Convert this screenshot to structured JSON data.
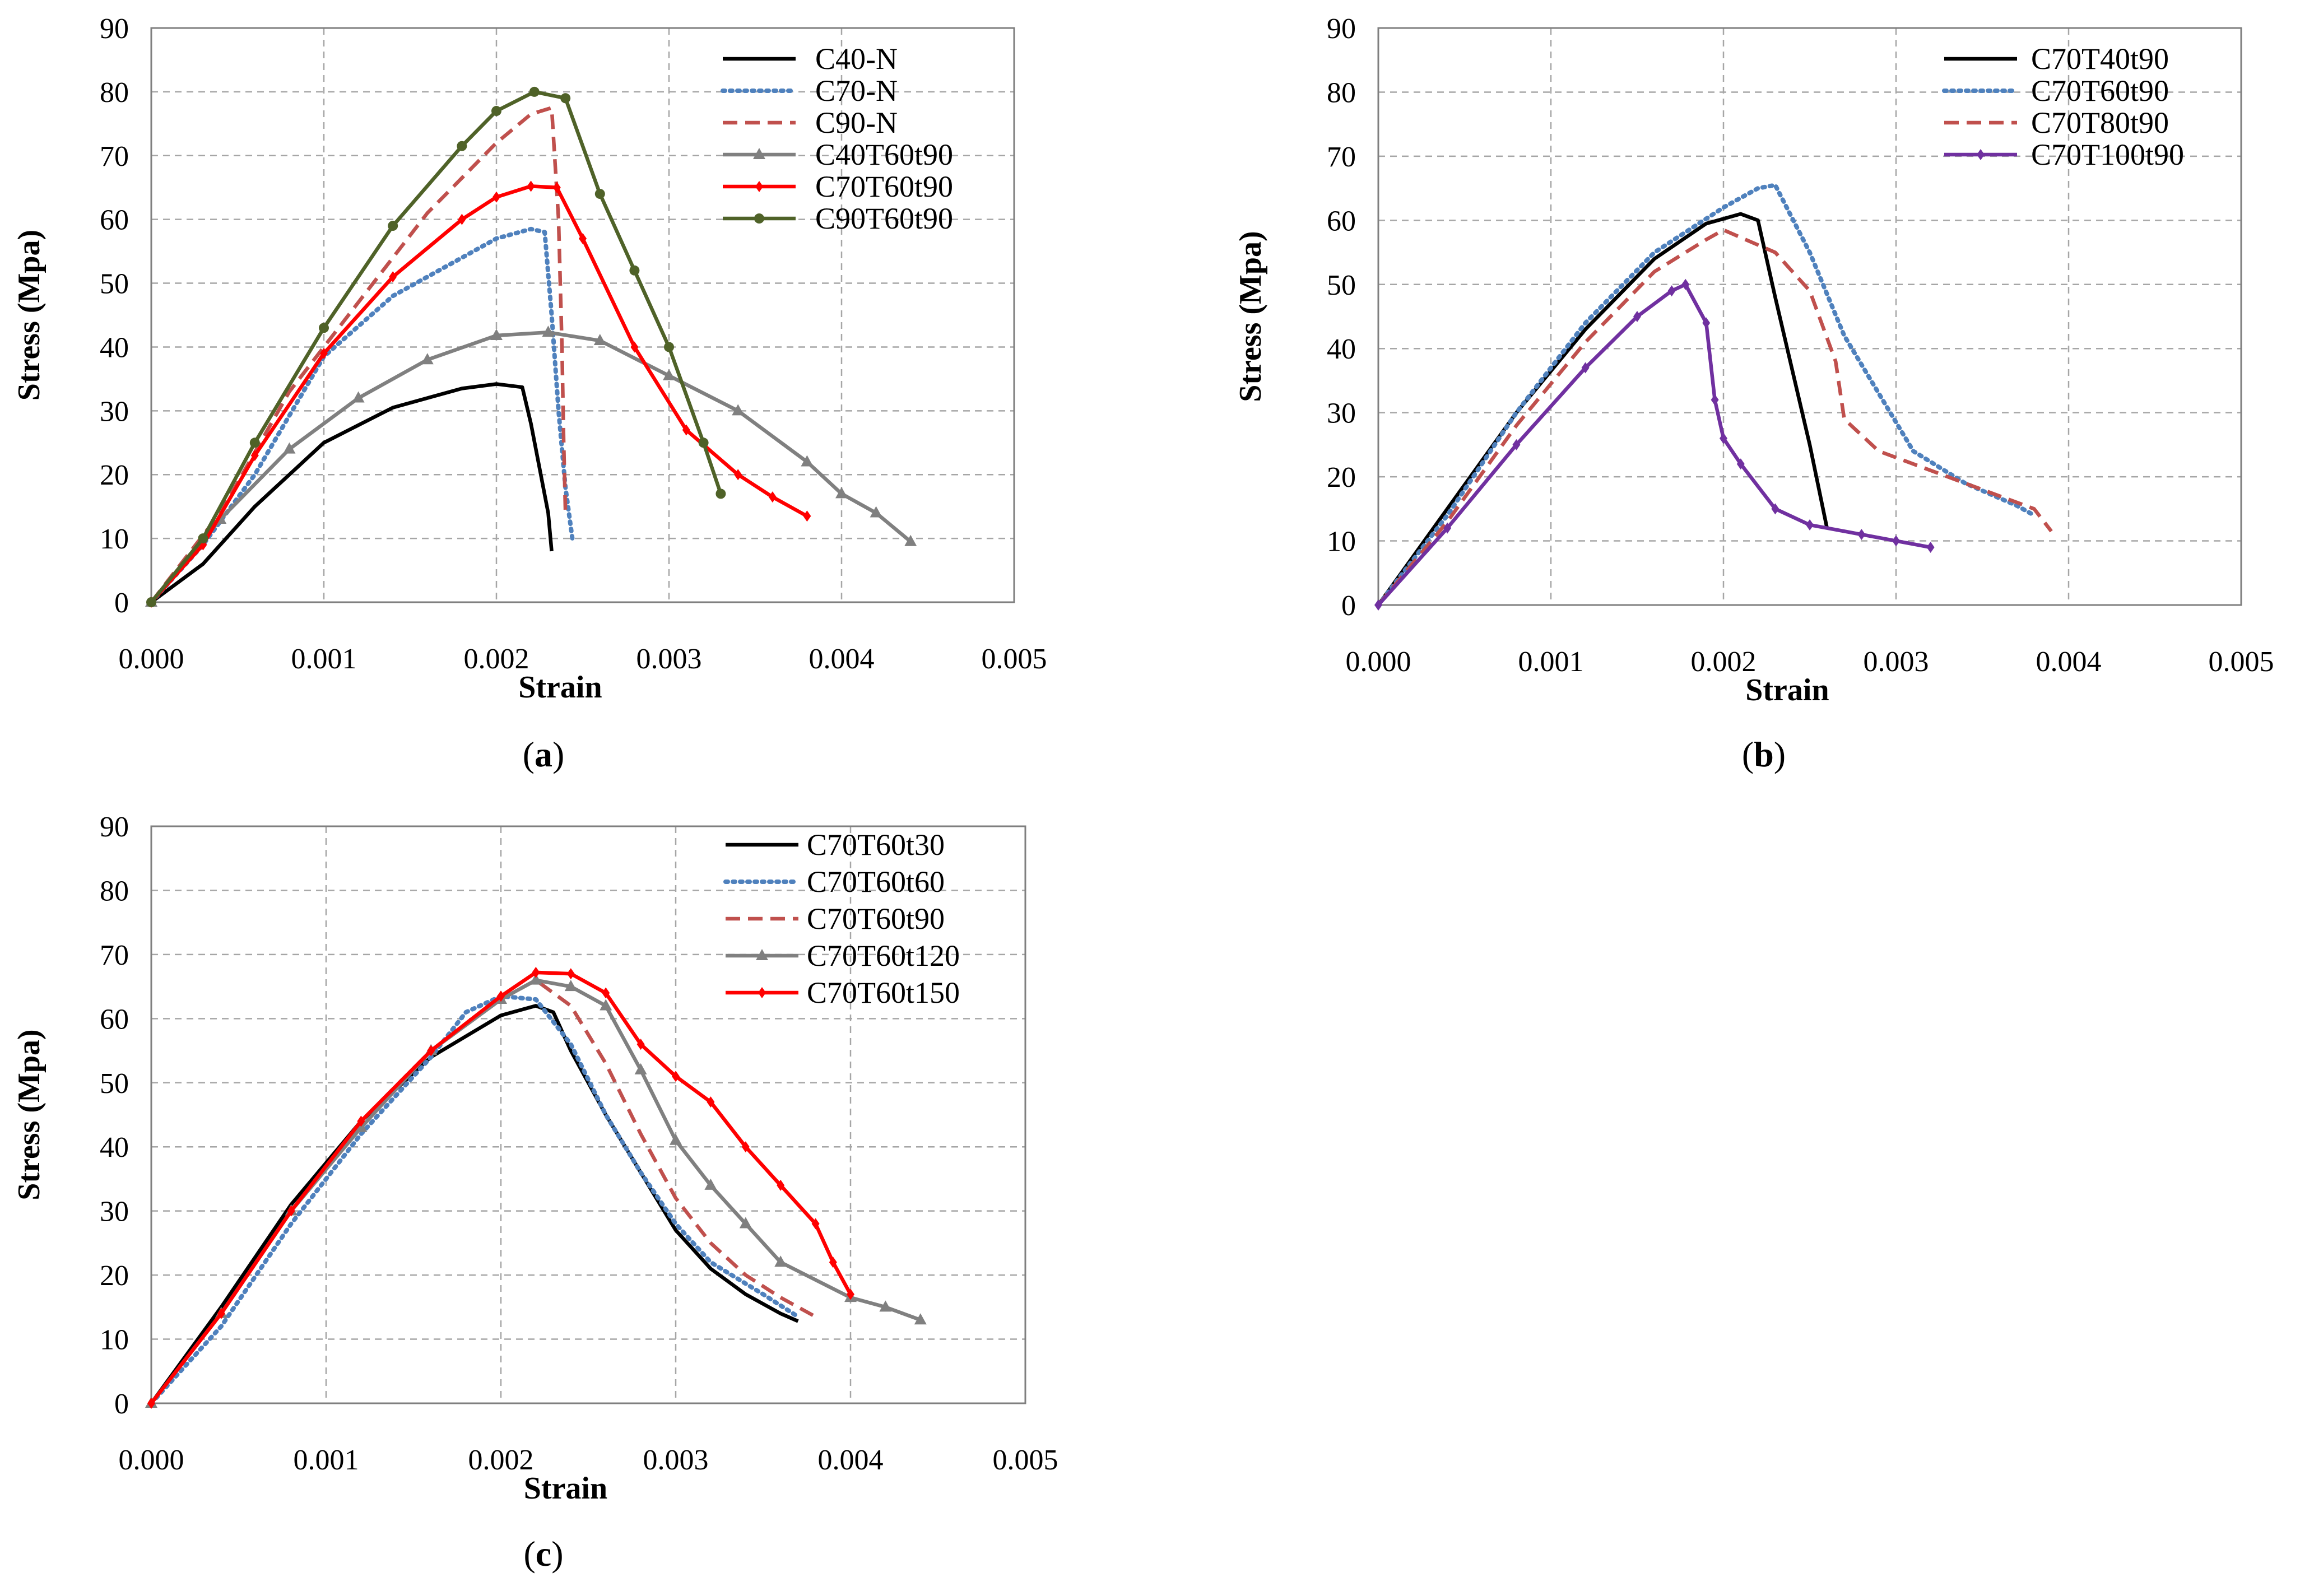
{
  "chart_data": [
    {
      "type": "line",
      "panel": "a",
      "caption_prefix": "(",
      "caption_letter": "a",
      "caption_suffix": ")",
      "xlabel": "Strain",
      "ylabel": "Stress (Mpa)",
      "xlim": [
        0,
        0.005
      ],
      "ylim": [
        0,
        90
      ],
      "x_ticks": [
        "0.000",
        "0.001",
        "0.002",
        "0.003",
        "0.004",
        "0.005"
      ],
      "y_ticks": [
        "0",
        "10",
        "20",
        "30",
        "40",
        "50",
        "60",
        "70",
        "80",
        "90"
      ],
      "grid": true,
      "legend_position": "top-right",
      "series": [
        {
          "name": "C40-N",
          "color": "#000000",
          "dash": "solid",
          "marker": "none",
          "points": [
            [
              0,
              0
            ],
            [
              0.0003,
              6
            ],
            [
              0.0006,
              15
            ],
            [
              0.001,
              25
            ],
            [
              0.0014,
              30.5
            ],
            [
              0.0018,
              33.5
            ],
            [
              0.002,
              34.2
            ],
            [
              0.00215,
              33.7
            ],
            [
              0.0022,
              28
            ],
            [
              0.00225,
              21
            ],
            [
              0.0023,
              14
            ],
            [
              0.00232,
              8
            ]
          ]
        },
        {
          "name": "C70-N",
          "color": "#4f81bd",
          "dash": "dot",
          "marker": "none",
          "points": [
            [
              0,
              0
            ],
            [
              0.0003,
              9
            ],
            [
              0.0006,
              20
            ],
            [
              0.001,
              38.5
            ],
            [
              0.0014,
              48
            ],
            [
              0.0018,
              54
            ],
            [
              0.002,
              57
            ],
            [
              0.0022,
              58.5
            ],
            [
              0.00228,
              58
            ],
            [
              0.00232,
              45
            ],
            [
              0.00236,
              30
            ],
            [
              0.0024,
              18
            ],
            [
              0.00244,
              10
            ]
          ]
        },
        {
          "name": "C90-N",
          "color": "#c0504d",
          "dash": "dash",
          "marker": "none",
          "points": [
            [
              0,
              0
            ],
            [
              0.0004,
              14
            ],
            [
              0.0008,
              33
            ],
            [
              0.0012,
              47
            ],
            [
              0.0016,
              61
            ],
            [
              0.002,
              72
            ],
            [
              0.0022,
              76.5
            ],
            [
              0.00232,
              77.5
            ],
            [
              0.00236,
              60
            ],
            [
              0.00238,
              40
            ],
            [
              0.00239,
              25
            ],
            [
              0.0024,
              14
            ]
          ]
        },
        {
          "name": "C40T60t90",
          "color": "#808080",
          "dash": "solid",
          "marker": "triangle",
          "points": [
            [
              0,
              0
            ],
            [
              0.0004,
              13
            ],
            [
              0.0008,
              24
            ],
            [
              0.0012,
              32
            ],
            [
              0.0016,
              38
            ],
            [
              0.002,
              41.8
            ],
            [
              0.0023,
              42.3
            ],
            [
              0.0026,
              41
            ],
            [
              0.003,
              35.5
            ],
            [
              0.0034,
              30
            ],
            [
              0.0038,
              22
            ],
            [
              0.004,
              17
            ],
            [
              0.0042,
              14
            ],
            [
              0.0044,
              9.5
            ]
          ]
        },
        {
          "name": "C70T60t90",
          "color": "#ff0000",
          "dash": "solid",
          "marker": "diamond",
          "points": [
            [
              0,
              0
            ],
            [
              0.0003,
              9
            ],
            [
              0.0006,
              23
            ],
            [
              0.001,
              39
            ],
            [
              0.0014,
              51
            ],
            [
              0.0018,
              60
            ],
            [
              0.002,
              63.5
            ],
            [
              0.0022,
              65.2
            ],
            [
              0.00235,
              65
            ],
            [
              0.0025,
              57
            ],
            [
              0.0028,
              40
            ],
            [
              0.0031,
              27
            ],
            [
              0.0034,
              20
            ],
            [
              0.0036,
              16.5
            ],
            [
              0.0038,
              13.5
            ]
          ]
        },
        {
          "name": "C90T60t90",
          "color": "#4f6228",
          "dash": "solid",
          "marker": "circle",
          "points": [
            [
              0,
              0
            ],
            [
              0.0003,
              10
            ],
            [
              0.0006,
              25
            ],
            [
              0.001,
              43
            ],
            [
              0.0014,
              59
            ],
            [
              0.0018,
              71.5
            ],
            [
              0.002,
              77
            ],
            [
              0.00222,
              80
            ],
            [
              0.0024,
              79
            ],
            [
              0.0026,
              64
            ],
            [
              0.0028,
              52
            ],
            [
              0.003,
              40
            ],
            [
              0.0032,
              25
            ],
            [
              0.0033,
              17
            ]
          ]
        }
      ]
    },
    {
      "type": "line",
      "panel": "b",
      "caption_prefix": "(",
      "caption_letter": "b",
      "caption_suffix": ")",
      "xlabel": "Strain",
      "ylabel": "Stress (Mpa)",
      "xlim": [
        0,
        0.005
      ],
      "ylim": [
        0,
        90
      ],
      "x_ticks": [
        "0.000",
        "0.001",
        "0.002",
        "0.003",
        "0.004",
        "0.005"
      ],
      "y_ticks": [
        "0",
        "10",
        "20",
        "30",
        "40",
        "50",
        "60",
        "70",
        "80",
        "90"
      ],
      "grid": true,
      "legend_position": "top-right",
      "series": [
        {
          "name": "C70T40t90",
          "color": "#000000",
          "dash": "solid",
          "marker": "none",
          "points": [
            [
              0,
              0
            ],
            [
              0.0004,
              15
            ],
            [
              0.0008,
              30
            ],
            [
              0.0012,
              43
            ],
            [
              0.0016,
              54
            ],
            [
              0.0019,
              59.5
            ],
            [
              0.0021,
              61
            ],
            [
              0.0022,
              60
            ],
            [
              0.0023,
              48
            ],
            [
              0.0025,
              25
            ],
            [
              0.0026,
              12
            ]
          ]
        },
        {
          "name": "C70T60t90",
          "color": "#4f81bd",
          "dash": "dot",
          "marker": "none",
          "points": [
            [
              0,
              0
            ],
            [
              0.0004,
              14
            ],
            [
              0.0008,
              30
            ],
            [
              0.0012,
              44
            ],
            [
              0.0016,
              55
            ],
            [
              0.002,
              62
            ],
            [
              0.0022,
              65
            ],
            [
              0.0023,
              65.5
            ],
            [
              0.0025,
              55
            ],
            [
              0.0027,
              42
            ],
            [
              0.0029,
              33
            ],
            [
              0.0031,
              24
            ],
            [
              0.0034,
              19
            ],
            [
              0.0037,
              15.5
            ],
            [
              0.0038,
              14
            ]
          ]
        },
        {
          "name": "C70T80t90",
          "color": "#c0504d",
          "dash": "dash",
          "marker": "none",
          "points": [
            [
              0,
              0
            ],
            [
              0.0004,
              13
            ],
            [
              0.0008,
              28
            ],
            [
              0.0012,
              41
            ],
            [
              0.0016,
              52
            ],
            [
              0.0019,
              57
            ],
            [
              0.002,
              58.5
            ],
            [
              0.0023,
              55
            ],
            [
              0.0025,
              49
            ],
            [
              0.00265,
              38
            ],
            [
              0.0027,
              29
            ],
            [
              0.0029,
              24
            ],
            [
              0.0032,
              21
            ],
            [
              0.0035,
              18
            ],
            [
              0.0038,
              15
            ],
            [
              0.0039,
              11.5
            ]
          ]
        },
        {
          "name": "C70T100t90",
          "color": "#7030a0",
          "dash": "solid",
          "marker": "diamond",
          "points": [
            [
              0,
              0
            ],
            [
              0.0004,
              12
            ],
            [
              0.0008,
              25
            ],
            [
              0.0012,
              37
            ],
            [
              0.0015,
              45
            ],
            [
              0.0017,
              49
            ],
            [
              0.00178,
              50
            ],
            [
              0.0019,
              44
            ],
            [
              0.00195,
              32
            ],
            [
              0.002,
              26
            ],
            [
              0.0021,
              22
            ],
            [
              0.0023,
              15
            ],
            [
              0.0025,
              12.5
            ],
            [
              0.0028,
              11
            ],
            [
              0.003,
              10
            ],
            [
              0.0032,
              9
            ]
          ]
        }
      ]
    },
    {
      "type": "line",
      "panel": "c",
      "caption_prefix": "(",
      "caption_letter": "c",
      "caption_suffix": ")",
      "xlabel": "Strain",
      "ylabel": "Stress (Mpa)",
      "xlim": [
        0,
        0.005
      ],
      "ylim": [
        0,
        90
      ],
      "x_ticks": [
        "0.000",
        "0.001",
        "0.002",
        "0.003",
        "0.004",
        "0.005"
      ],
      "y_ticks": [
        "0",
        "10",
        "20",
        "30",
        "40",
        "50",
        "60",
        "70",
        "80",
        "90"
      ],
      "grid": true,
      "legend_position": "top-right",
      "series": [
        {
          "name": "C70T60t30",
          "color": "#000000",
          "dash": "solid",
          "marker": "none",
          "points": [
            [
              0,
              0
            ],
            [
              0.0004,
              15
            ],
            [
              0.0008,
              31
            ],
            [
              0.0012,
              44
            ],
            [
              0.0016,
              54
            ],
            [
              0.002,
              60.5
            ],
            [
              0.0022,
              62
            ],
            [
              0.0023,
              61
            ],
            [
              0.0024,
              55
            ],
            [
              0.0026,
              45
            ],
            [
              0.0028,
              36
            ],
            [
              0.003,
              27
            ],
            [
              0.0032,
              21
            ],
            [
              0.0034,
              17
            ],
            [
              0.0036,
              14
            ],
            [
              0.0037,
              12.8
            ]
          ]
        },
        {
          "name": "C70T60t60",
          "color": "#4f81bd",
          "dash": "dot",
          "marker": "none",
          "points": [
            [
              0,
              0
            ],
            [
              0.0004,
              12
            ],
            [
              0.0008,
              28
            ],
            [
              0.0012,
              42
            ],
            [
              0.0016,
              54
            ],
            [
              0.0018,
              61
            ],
            [
              0.002,
              63.5
            ],
            [
              0.0022,
              63
            ],
            [
              0.0024,
              56
            ],
            [
              0.0026,
              45
            ],
            [
              0.0028,
              36
            ],
            [
              0.003,
              28
            ],
            [
              0.0032,
              22
            ],
            [
              0.0035,
              17
            ],
            [
              0.0037,
              13.5
            ]
          ]
        },
        {
          "name": "C70T60t90",
          "color": "#c0504d",
          "dash": "dash",
          "marker": "none",
          "points": [
            [
              0,
              0
            ],
            [
              0.0004,
              14
            ],
            [
              0.0008,
              30
            ],
            [
              0.0012,
              44
            ],
            [
              0.0016,
              55
            ],
            [
              0.002,
              63
            ],
            [
              0.0022,
              66
            ],
            [
              0.0024,
              62
            ],
            [
              0.0026,
              53
            ],
            [
              0.0028,
              42
            ],
            [
              0.003,
              32
            ],
            [
              0.0032,
              25
            ],
            [
              0.0034,
              20
            ],
            [
              0.0036,
              16.5
            ],
            [
              0.0038,
              13.5
            ]
          ]
        },
        {
          "name": "C70T60t120",
          "color": "#808080",
          "dash": "solid",
          "marker": "triangle",
          "points": [
            [
              0,
              0
            ],
            [
              0.0004,
              14
            ],
            [
              0.0008,
              30
            ],
            [
              0.0012,
              43
            ],
            [
              0.0016,
              55
            ],
            [
              0.002,
              63
            ],
            [
              0.0022,
              66
            ],
            [
              0.0024,
              65
            ],
            [
              0.0026,
              62
            ],
            [
              0.0028,
              52
            ],
            [
              0.003,
              41
            ],
            [
              0.0032,
              34
            ],
            [
              0.0034,
              28
            ],
            [
              0.0036,
              22
            ],
            [
              0.004,
              16.5
            ],
            [
              0.0042,
              15
            ],
            [
              0.0044,
              13
            ]
          ]
        },
        {
          "name": "C70T60t150",
          "color": "#ff0000",
          "dash": "solid",
          "marker": "diamond",
          "points": [
            [
              0,
              0
            ],
            [
              0.0004,
              14
            ],
            [
              0.0008,
              30
            ],
            [
              0.0012,
              44
            ],
            [
              0.0016,
              55
            ],
            [
              0.002,
              63.5
            ],
            [
              0.0022,
              67.2
            ],
            [
              0.0024,
              67
            ],
            [
              0.0026,
              64
            ],
            [
              0.0028,
              56
            ],
            [
              0.003,
              51
            ],
            [
              0.0032,
              47
            ],
            [
              0.0034,
              40
            ],
            [
              0.0036,
              34
            ],
            [
              0.0038,
              28
            ],
            [
              0.0039,
              22
            ],
            [
              0.004,
              17
            ]
          ]
        }
      ]
    }
  ]
}
